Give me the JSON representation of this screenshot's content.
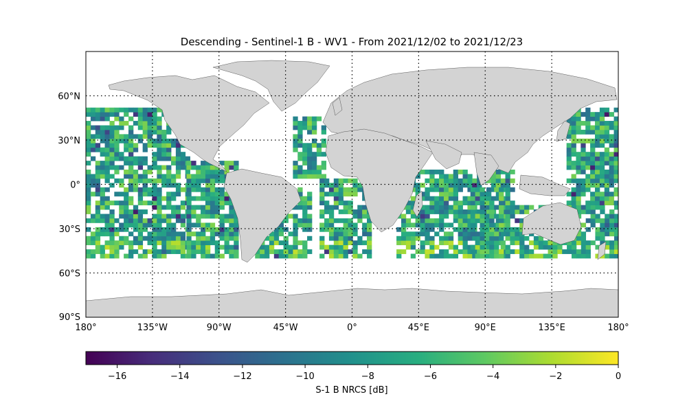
{
  "title": "Descending - Sentinel-1 B - WV1 - From 2021/12/02 to 2021/12/23",
  "map": {
    "projection": "plate-carree",
    "lon_range": [
      -180,
      180
    ],
    "lat_range": [
      -90,
      90
    ],
    "lon_ticks": [
      {
        "value": -180,
        "label": "180°"
      },
      {
        "value": -135,
        "label": "135°W"
      },
      {
        "value": -90,
        "label": "90°W"
      },
      {
        "value": -45,
        "label": "45°W"
      },
      {
        "value": 0,
        "label": "0°"
      },
      {
        "value": 45,
        "label": "45°E"
      },
      {
        "value": 90,
        "label": "90°E"
      },
      {
        "value": 135,
        "label": "135°E"
      },
      {
        "value": 180,
        "label": "180°"
      }
    ],
    "lat_ticks": [
      {
        "value": 60,
        "label": "60°N"
      },
      {
        "value": 30,
        "label": "30°N"
      },
      {
        "value": 0,
        "label": "0°"
      },
      {
        "value": -30,
        "label": "30°S"
      },
      {
        "value": -60,
        "label": "60°S"
      },
      {
        "value": -90,
        "label": "90°S"
      }
    ],
    "gridlines": "dotted",
    "land_color": "#d3d3d3",
    "ocean_color": "#ffffff",
    "data_lat_coverage": [
      -50,
      50
    ]
  },
  "colorbar": {
    "label": "S-1 B NRCS [dB]",
    "vmin": -17,
    "vmax": 0,
    "colormap": "viridis",
    "ticks": [
      {
        "value": -16,
        "label": "−16"
      },
      {
        "value": -14,
        "label": "−14"
      },
      {
        "value": -12,
        "label": "−12"
      },
      {
        "value": -10,
        "label": "−10"
      },
      {
        "value": -8,
        "label": "−8"
      },
      {
        "value": -6,
        "label": "−6"
      },
      {
        "value": -4,
        "label": "−4"
      },
      {
        "value": -2,
        "label": "−2"
      },
      {
        "value": 0,
        "label": "0"
      }
    ]
  }
}
